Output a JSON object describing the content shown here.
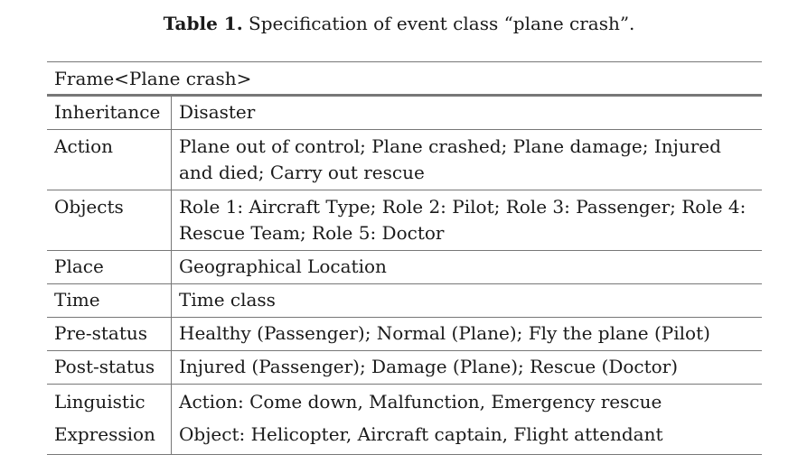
{
  "caption": {
    "label": "Table 1.",
    "text": "Specification of event class “plane crash”."
  },
  "table": {
    "frame_header": "Frame<Plane crash>",
    "rows": [
      {
        "label": "Inheritance",
        "value": "Disaster"
      },
      {
        "label": "Action",
        "value": "Plane out of control; Plane crashed; Plane damage; Injured and died; Carry out rescue"
      },
      {
        "label": "Objects",
        "value": "Role 1: Aircraft Type; Role 2: Pilot; Role 3: Passenger; Role 4: Rescue Team; Role 5: Doctor"
      },
      {
        "label": "Place",
        "value": "Geographical Location"
      },
      {
        "label": "Time",
        "value": "Time class"
      },
      {
        "label": "Pre-status",
        "value": "Healthy (Passenger); Normal (Plane); Fly the plane (Pilot)"
      },
      {
        "label": "Post-status",
        "value": "Injured (Passenger); Damage (Plane); Rescue (Doctor)"
      }
    ],
    "linguistic": {
      "label_line1": "Linguistic",
      "label_line2": "Expression",
      "value_line1": "Action: Come down, Malfunction, Emergency rescue",
      "value_line2": "Object: Helicopter, Aircraft captain, Flight attendant"
    }
  }
}
